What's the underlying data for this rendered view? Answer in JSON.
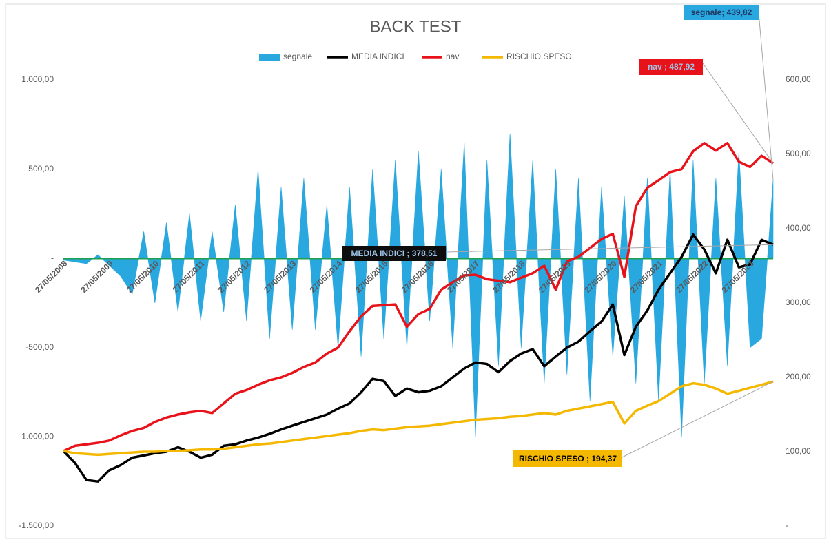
{
  "chart_data": {
    "type": "line",
    "title": "BACK TEST",
    "legend": "top",
    "grid": false,
    "x": [
      "27/05/2008",
      "27/08/2008",
      "27/11/2008",
      "27/02/2009",
      "27/05/2009",
      "27/08/2009",
      "27/11/2009",
      "27/02/2010",
      "27/05/2010",
      "27/08/2010",
      "27/11/2010",
      "27/02/2011",
      "27/05/2011",
      "27/08/2011",
      "27/11/2011",
      "27/02/2012",
      "27/05/2012",
      "27/08/2012",
      "27/11/2012",
      "27/02/2013",
      "27/05/2013",
      "27/08/2013",
      "27/11/2013",
      "27/02/2014",
      "27/05/2014",
      "27/08/2014",
      "27/11/2014",
      "27/02/2015",
      "27/05/2015",
      "27/08/2015",
      "27/11/2015",
      "27/02/2016",
      "27/05/2016",
      "27/08/2016",
      "27/11/2016",
      "27/02/2017",
      "27/05/2017",
      "27/08/2017",
      "27/11/2017",
      "27/02/2018",
      "27/05/2018",
      "27/08/2018",
      "27/11/2018",
      "27/02/2019",
      "27/05/2019",
      "27/08/2019",
      "27/11/2019",
      "27/02/2020",
      "27/05/2020",
      "27/08/2020",
      "27/11/2020",
      "27/02/2021",
      "27/05/2021",
      "27/08/2021",
      "27/11/2021",
      "27/02/2022",
      "27/05/2022",
      "27/08/2022",
      "27/11/2022",
      "27/02/2023",
      "27/05/2023",
      "27/08/2023",
      "27/11/2023"
    ],
    "xlim": [
      "27/05/2008",
      "27/11/2023"
    ],
    "xticks": [
      "27/05/2008",
      "27/05/2009",
      "27/05/2010",
      "27/05/2011",
      "27/05/2012",
      "27/05/2013",
      "27/05/2014",
      "27/05/2015",
      "27/05/2016",
      "27/05/2017",
      "27/05/2018",
      "27/05/2019",
      "27/05/2020",
      "27/05/2021",
      "27/05/2022",
      "27/05/2023"
    ],
    "ylim": [
      -1500,
      1000
    ],
    "yticks": [
      {
        "value": -1500,
        "label": "-1.500,00"
      },
      {
        "value": -1000,
        "label": "-1.000,00"
      },
      {
        "value": -500,
        "label": "-500,00"
      },
      {
        "value": 0,
        "label": "-"
      },
      {
        "value": 500,
        "label": "500,00"
      },
      {
        "value": 1000,
        "label": "1.000,00"
      }
    ],
    "y2lim": [
      0,
      600
    ],
    "y2ticks": [
      {
        "value": 0,
        "label": "-"
      },
      {
        "value": 100,
        "label": "100,00"
      },
      {
        "value": 200,
        "label": "200,00"
      },
      {
        "value": 300,
        "label": "300,00"
      },
      {
        "value": 400,
        "label": "400,00"
      },
      {
        "value": 500,
        "label": "500,00"
      },
      {
        "value": 600,
        "label": "600,00"
      }
    ],
    "zero_line_color": "#1fa050",
    "series": [
      {
        "name": "segnale",
        "type": "area",
        "axis": "y",
        "color": "#29a8e0",
        "values": [
          -10,
          -20,
          -30,
          20,
          -40,
          -100,
          -200,
          150,
          -250,
          200,
          -300,
          250,
          -350,
          150,
          -300,
          300,
          -350,
          500,
          -450,
          400,
          -400,
          450,
          -400,
          300,
          -500,
          400,
          -550,
          500,
          -450,
          550,
          -500,
          600,
          -350,
          500,
          -500,
          650,
          -1000,
          550,
          -600,
          700,
          -500,
          550,
          -700,
          500,
          -650,
          450,
          -800,
          400,
          -550,
          350,
          -700,
          450,
          -800,
          500,
          -1000,
          550,
          -700,
          450,
          -600,
          600,
          -500,
          -450,
          439.82
        ],
        "value_labels": [
          null,
          null,
          null,
          null,
          null,
          null,
          null,
          null,
          null,
          null,
          null,
          null,
          null,
          null,
          null,
          null,
          null,
          null,
          null,
          null,
          null,
          null,
          null,
          null,
          null,
          null,
          null,
          null,
          null,
          null,
          null,
          null,
          null,
          null,
          null,
          null,
          null,
          null,
          null,
          null,
          null,
          null,
          null,
          null,
          null,
          null,
          null,
          null,
          null,
          null,
          null,
          null,
          null,
          null,
          null,
          null,
          null,
          null,
          null,
          null,
          null,
          null,
          "segnale; 439,82"
        ]
      },
      {
        "name": "MEDIA INDICI",
        "type": "line",
        "axis": "y2",
        "color": "#000000",
        "values": [
          101,
          85,
          62,
          60,
          75,
          82,
          92,
          95,
          98,
          100,
          106,
          100,
          92,
          96,
          108,
          110,
          115,
          119,
          124,
          130,
          135,
          140,
          145,
          150,
          158,
          165,
          180,
          198,
          195,
          175,
          185,
          180,
          182,
          188,
          200,
          212,
          220,
          218,
          207,
          222,
          232,
          238,
          215,
          228,
          240,
          248,
          262,
          275,
          298,
          230,
          268,
          290,
          318,
          340,
          362,
          392,
          372,
          340,
          385,
          348,
          352,
          385,
          378.51
        ],
        "value_labels": [
          null,
          null,
          null,
          null,
          null,
          null,
          null,
          null,
          null,
          null,
          null,
          null,
          null,
          null,
          null,
          null,
          null,
          null,
          null,
          null,
          null,
          null,
          null,
          null,
          null,
          null,
          null,
          null,
          null,
          null,
          null,
          null,
          null,
          null,
          null,
          null,
          null,
          null,
          null,
          null,
          null,
          null,
          null,
          null,
          null,
          null,
          null,
          null,
          null,
          null,
          null,
          null,
          null,
          null,
          null,
          null,
          null,
          null,
          null,
          null,
          null,
          null,
          "MEDIA INDICI ; 378,51"
        ]
      },
      {
        "name": "nav",
        "type": "line",
        "axis": "y2",
        "color": "#e8121a",
        "values": [
          101,
          108,
          110,
          112,
          115,
          122,
          128,
          132,
          140,
          146,
          150,
          153,
          155,
          152,
          165,
          178,
          183,
          190,
          196,
          200,
          206,
          214,
          220,
          232,
          240,
          262,
          282,
          296,
          297,
          298,
          268,
          285,
          292,
          318,
          328,
          337,
          338,
          332,
          330,
          328,
          334,
          340,
          350,
          318,
          356,
          362,
          374,
          386,
          393,
          335,
          430,
          455,
          465,
          476,
          480,
          504,
          515,
          505,
          515,
          490,
          483,
          498,
          487.92
        ],
        "value_labels": [
          null,
          null,
          null,
          null,
          null,
          null,
          null,
          null,
          null,
          null,
          null,
          null,
          null,
          null,
          null,
          null,
          null,
          null,
          null,
          null,
          null,
          null,
          null,
          null,
          null,
          null,
          null,
          null,
          null,
          null,
          null,
          null,
          null,
          null,
          null,
          null,
          null,
          null,
          null,
          null,
          null,
          null,
          null,
          null,
          null,
          null,
          null,
          null,
          null,
          null,
          null,
          null,
          null,
          null,
          null,
          null,
          null,
          null,
          null,
          null,
          null,
          null,
          "nav ; 487,92"
        ]
      },
      {
        "name": "RISCHIO SPESO",
        "type": "line",
        "axis": "y2",
        "color": "#f5b800",
        "values": [
          101,
          98,
          97,
          96,
          97,
          98,
          99,
          100,
          100,
          101,
          101,
          102,
          103,
          103,
          104,
          106,
          108,
          110,
          111,
          113,
          115,
          117,
          119,
          121,
          123,
          125,
          128,
          130,
          129,
          131,
          133,
          134,
          135,
          137,
          139,
          141,
          143,
          144,
          145,
          147,
          148,
          150,
          152,
          150,
          155,
          158,
          161,
          164,
          167,
          138,
          155,
          162,
          168,
          178,
          188,
          192,
          190,
          185,
          178,
          182,
          186,
          190,
          194.37
        ],
        "value_labels": [
          null,
          null,
          null,
          null,
          null,
          null,
          null,
          null,
          null,
          null,
          null,
          null,
          null,
          null,
          null,
          null,
          null,
          null,
          null,
          null,
          null,
          null,
          null,
          null,
          null,
          null,
          null,
          null,
          null,
          null,
          null,
          null,
          null,
          null,
          null,
          null,
          null,
          null,
          null,
          null,
          null,
          null,
          null,
          null,
          null,
          null,
          null,
          null,
          null,
          null,
          null,
          null,
          null,
          null,
          null,
          null,
          null,
          null,
          null,
          null,
          null,
          null,
          "RISCHIO SPESO ; 194,37"
        ]
      }
    ]
  }
}
